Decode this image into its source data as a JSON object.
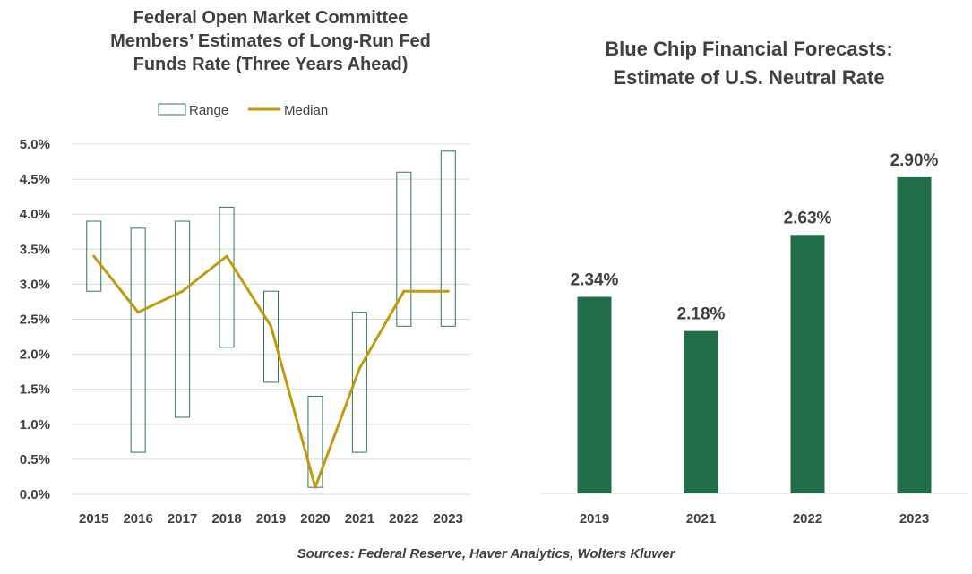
{
  "source": "Sources: Federal Reserve, Haver Analytics, Wolters Kluwer",
  "colors": {
    "range_outline": "#2f7a50",
    "median_line": "#c09a10",
    "bar": "#216d4a",
    "grid": "#d9d9d9",
    "text": "#404040"
  },
  "chart_data": [
    {
      "type": "line",
      "title_lines": [
        "Federal Open Market Committee",
        "Members’ Estimates of Long-Run Fed",
        "Funds Rate (Three Years Ahead)"
      ],
      "legend": {
        "position": "top",
        "range_label": "Range",
        "median_label": "Median"
      },
      "categories": [
        "2015",
        "2016",
        "2017",
        "2018",
        "2019",
        "2020",
        "2021",
        "2022",
        "2023"
      ],
      "ylim": [
        0,
        5
      ],
      "yticks": [
        "0.0%",
        "0.5%",
        "1.0%",
        "1.5%",
        "2.0%",
        "2.5%",
        "3.0%",
        "3.5%",
        "4.0%",
        "4.5%",
        "5.0%"
      ],
      "grid": true,
      "series": [
        {
          "name": "Range",
          "kind": "floating-range",
          "low": [
            2.9,
            0.6,
            1.1,
            2.1,
            1.6,
            0.1,
            0.6,
            2.4,
            2.4
          ],
          "high": [
            3.9,
            3.8,
            3.9,
            4.1,
            2.9,
            1.4,
            2.6,
            4.6,
            4.9
          ]
        },
        {
          "name": "Median",
          "kind": "line",
          "values": [
            3.4,
            2.6,
            2.9,
            3.4,
            2.4,
            0.1,
            1.8,
            2.9,
            2.9
          ]
        }
      ]
    },
    {
      "type": "bar",
      "title_lines": [
        "Blue Chip Financial Forecasts:",
        "Estimate of U.S. Neutral Rate"
      ],
      "categories": [
        "2019",
        "2021",
        "2022",
        "2023"
      ],
      "values": [
        2.34,
        2.18,
        2.63,
        2.9
      ],
      "data_labels": [
        "2.34%",
        "2.18%",
        "2.63%",
        "2.90%"
      ],
      "ylim": [
        1.42,
        3.0
      ],
      "grid": false
    }
  ]
}
